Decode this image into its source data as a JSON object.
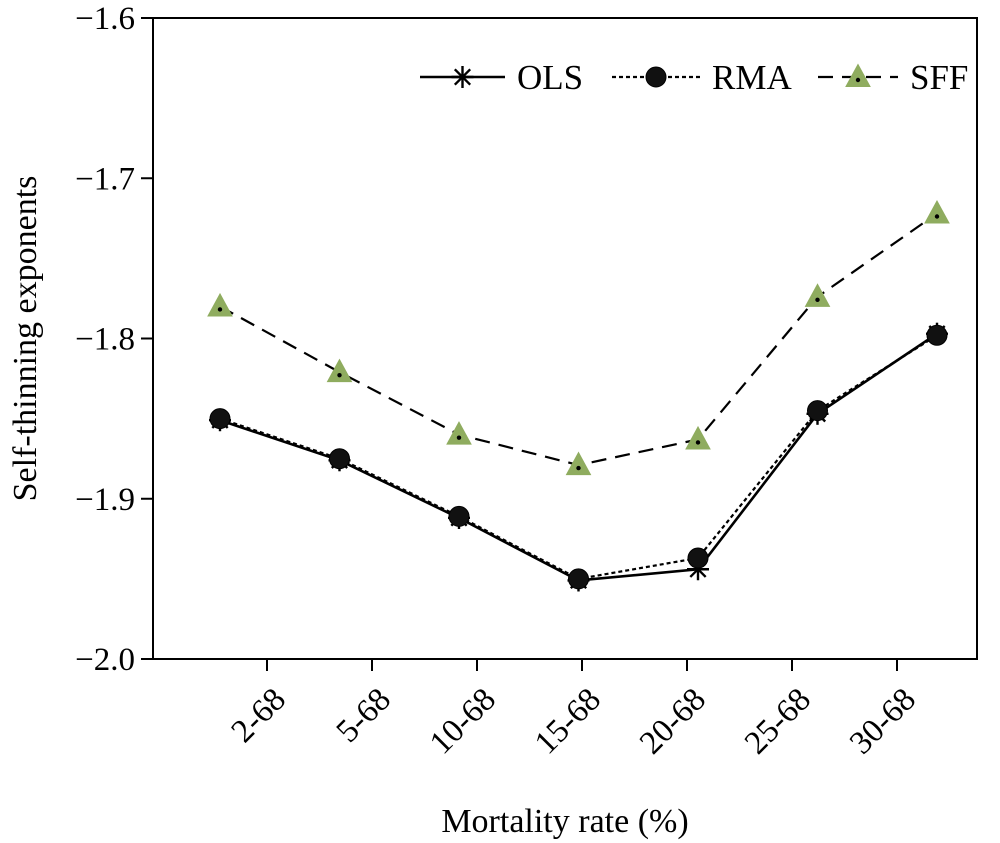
{
  "chart_data": {
    "type": "line",
    "title": "",
    "xlabel": "Mortality rate (%)",
    "ylabel": "Self-thinning exponents",
    "categories": [
      "2-68",
      "5-68",
      "10-68",
      "15-68",
      "20-68",
      "25-68",
      "30-68"
    ],
    "ylim": [
      -2.0,
      -1.6
    ],
    "yticks": [
      -2.0,
      -1.9,
      -1.8,
      -1.7,
      -1.6
    ],
    "ytick_labels": [
      "−2.0",
      "−1.9",
      "−1.8",
      "−1.7",
      "−1.6"
    ],
    "grid": false,
    "legend_position": "top-right",
    "series": [
      {
        "name": "OLS",
        "marker": "asterisk",
        "line_style": "solid",
        "color": "#000000",
        "values": [
          -1.851,
          -1.876,
          -1.912,
          -1.951,
          -1.944,
          -1.847,
          -1.797
        ]
      },
      {
        "name": "RMA",
        "marker": "circle",
        "line_style": "dotted",
        "color": "#000000",
        "values": [
          -1.85,
          -1.875,
          -1.911,
          -1.95,
          -1.937,
          -1.845,
          -1.798
        ]
      },
      {
        "name": "SFF",
        "marker": "triangle",
        "line_style": "dashed",
        "color": "#000000",
        "marker_color": "#8fac5f",
        "values": [
          -1.78,
          -1.821,
          -1.86,
          -1.879,
          -1.863,
          -1.774,
          -1.722
        ]
      }
    ]
  }
}
